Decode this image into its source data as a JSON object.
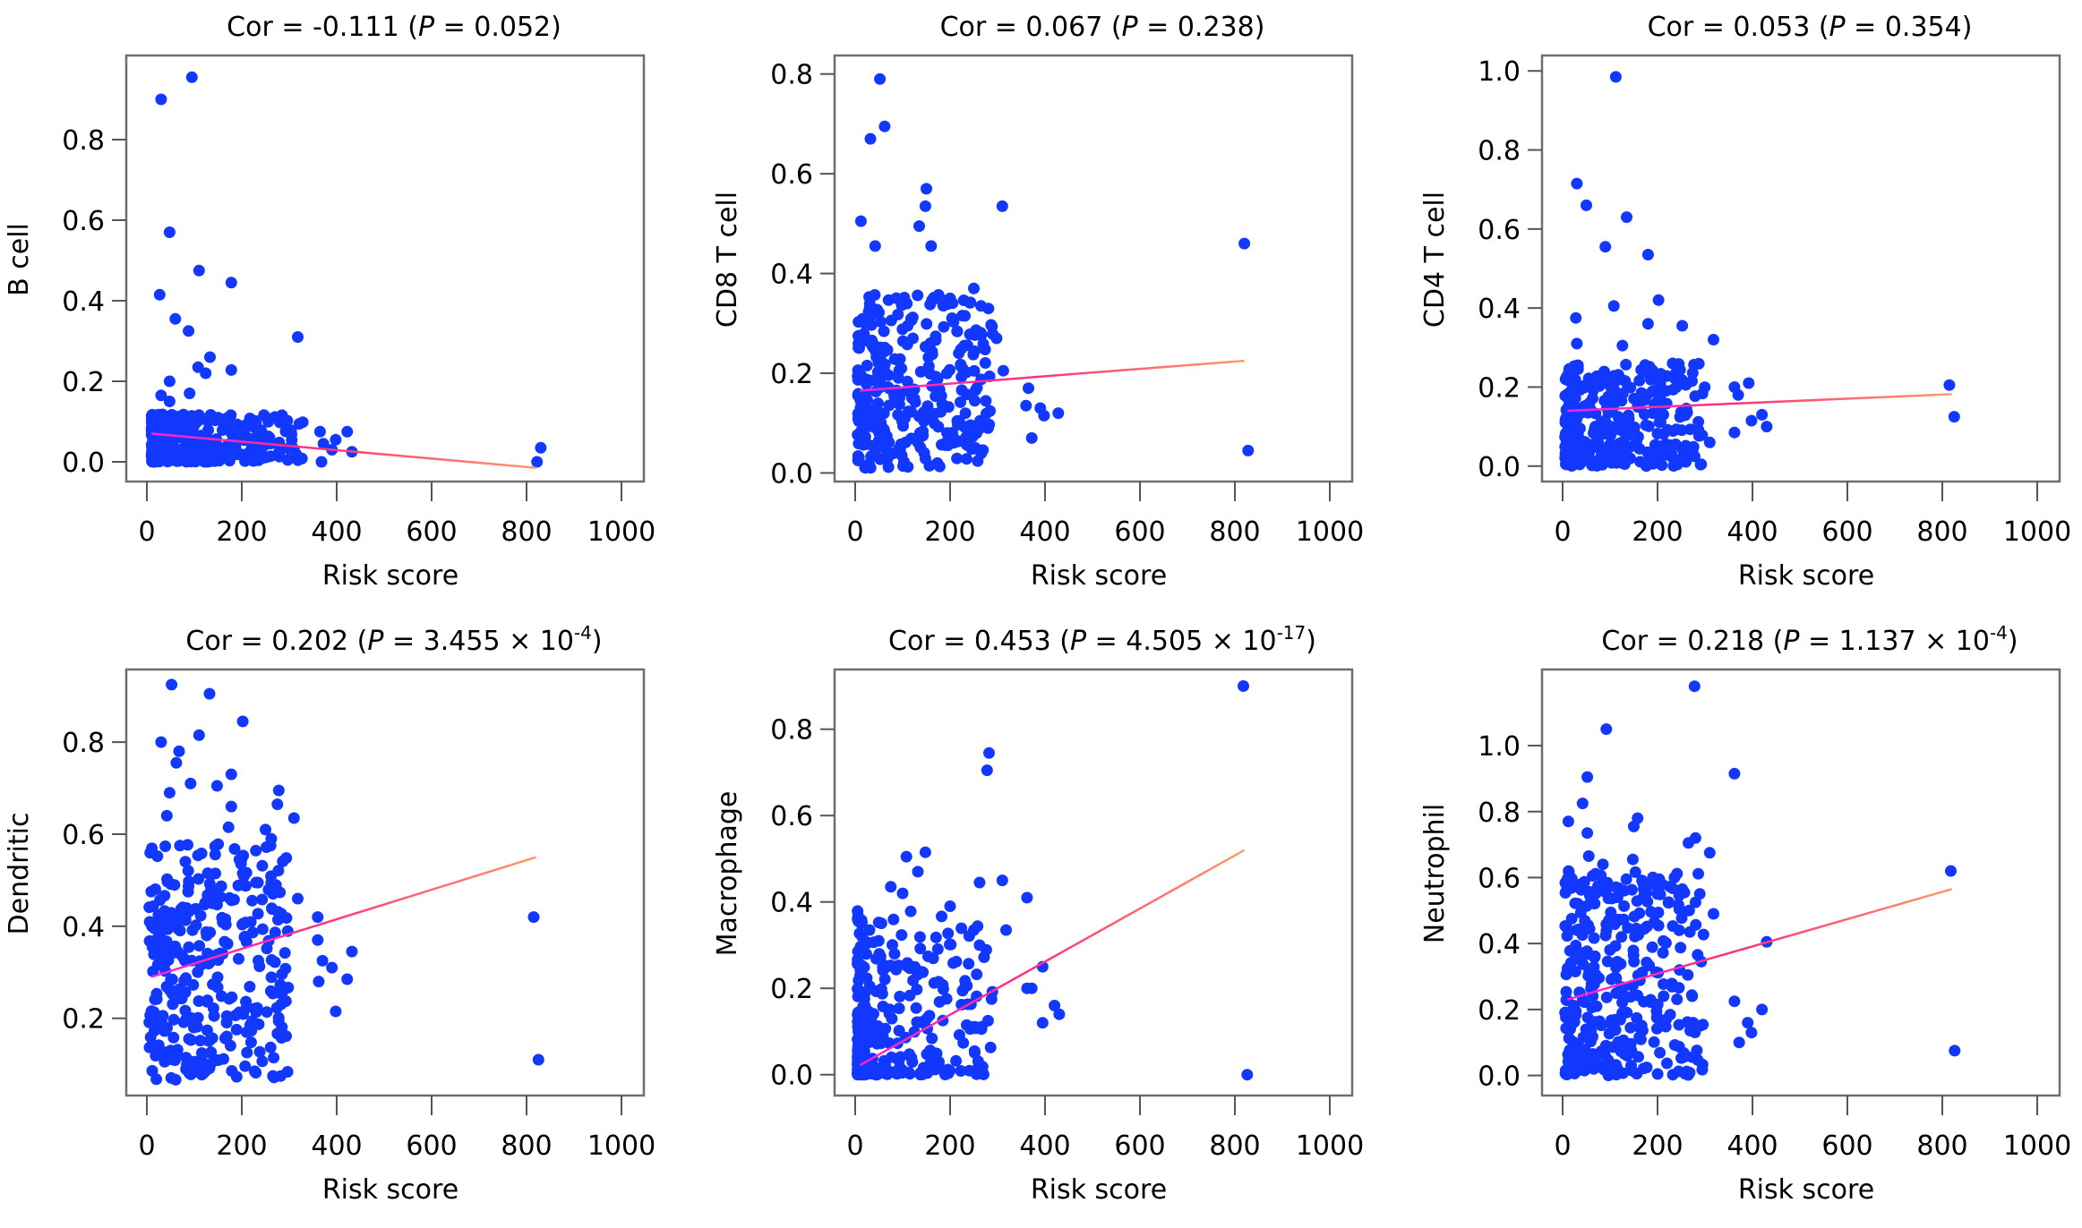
{
  "chart_data": [
    {
      "type": "scatter",
      "title": "Cor = -0.111 (P = 0.052)",
      "title_parts": {
        "cor": "-0.111",
        "p_mantissa": "0.052",
        "p_exponent": null
      },
      "xlabel": "Risk score",
      "ylabel": "B cell",
      "xlim": [
        -20,
        1050
      ],
      "ylim": [
        -0.04,
        1.0
      ],
      "xticks": [
        0,
        200,
        400,
        600,
        800,
        1000
      ],
      "yticks": [
        0.0,
        0.2,
        0.4,
        0.6,
        0.8
      ],
      "ytick_labels": [
        "0.0",
        "0.2",
        "0.4",
        "0.6",
        "0.8"
      ],
      "fit_line": {
        "x": [
          10,
          820
        ],
        "y": [
          0.07,
          -0.015
        ]
      },
      "outliers": [
        [
          30,
          0.9
        ],
        [
          95,
          0.955
        ],
        [
          48,
          0.57
        ],
        [
          27,
          0.415
        ],
        [
          110,
          0.475
        ],
        [
          178,
          0.445
        ],
        [
          60,
          0.355
        ],
        [
          88,
          0.325
        ],
        [
          318,
          0.31
        ],
        [
          133,
          0.26
        ],
        [
          108,
          0.235
        ],
        [
          124,
          0.22
        ],
        [
          178,
          0.228
        ],
        [
          48,
          0.2
        ],
        [
          30,
          0.165
        ],
        [
          90,
          0.17
        ],
        [
          48,
          0.15
        ],
        [
          215,
          0.095
        ],
        [
          365,
          0.075
        ],
        [
          422,
          0.075
        ],
        [
          398,
          0.055
        ],
        [
          372,
          0.045
        ],
        [
          390,
          0.03
        ],
        [
          432,
          0.025
        ],
        [
          368,
          0.0
        ],
        [
          822,
          0.0
        ],
        [
          830,
          0.035
        ]
      ],
      "cluster": {
        "x_range": [
          10,
          330
        ],
        "y_range": [
          0.0,
          0.12
        ],
        "n": 320,
        "skew": 2.0
      }
    },
    {
      "type": "scatter",
      "title": "Cor = 0.067 (P = 0.238)",
      "title_parts": {
        "cor": "0.067",
        "p_mantissa": "0.238",
        "p_exponent": null
      },
      "xlabel": "Risk score",
      "ylabel": "CD8 T cell",
      "xlim": [
        -20,
        1050
      ],
      "ylim": [
        -0.01,
        0.83
      ],
      "xticks": [
        0,
        200,
        400,
        600,
        800,
        1000
      ],
      "yticks": [
        0.0,
        0.2,
        0.4,
        0.6,
        0.8
      ],
      "ytick_labels": [
        "0.0",
        "0.2",
        "0.4",
        "0.6",
        "0.8"
      ],
      "fit_line": {
        "x": [
          10,
          820
        ],
        "y": [
          0.165,
          0.225
        ]
      },
      "outliers": [
        [
          52,
          0.79
        ],
        [
          62,
          0.695
        ],
        [
          32,
          0.67
        ],
        [
          150,
          0.57
        ],
        [
          148,
          0.535
        ],
        [
          310,
          0.535
        ],
        [
          12,
          0.505
        ],
        [
          135,
          0.495
        ],
        [
          160,
          0.455
        ],
        [
          42,
          0.455
        ],
        [
          820,
          0.46
        ],
        [
          828,
          0.045
        ],
        [
          250,
          0.37
        ],
        [
          265,
          0.335
        ],
        [
          200,
          0.35
        ],
        [
          298,
          0.27
        ],
        [
          312,
          0.205
        ],
        [
          365,
          0.17
        ],
        [
          360,
          0.135
        ],
        [
          390,
          0.13
        ],
        [
          398,
          0.115
        ],
        [
          428,
          0.12
        ],
        [
          372,
          0.07
        ],
        [
          280,
          0.09
        ]
      ],
      "cluster": {
        "x_range": [
          5,
          290
        ],
        "y_range": [
          0.01,
          0.36
        ],
        "n": 300,
        "skew": 1.4
      }
    },
    {
      "type": "scatter",
      "title": "Cor = 0.053 (P = 0.354)",
      "title_parts": {
        "cor": "0.053",
        "p_mantissa": "0.354",
        "p_exponent": null
      },
      "xlabel": "Risk score",
      "ylabel": "CD4 T cell",
      "xlim": [
        -20,
        1050
      ],
      "ylim": [
        -0.03,
        1.03
      ],
      "xticks": [
        0,
        200,
        400,
        600,
        800,
        1000
      ],
      "yticks": [
        0.0,
        0.2,
        0.4,
        0.6,
        0.8,
        1.0
      ],
      "ytick_labels": [
        "0.0",
        "0.2",
        "0.4",
        "0.6",
        "0.8",
        "1.0"
      ],
      "fit_line": {
        "x": [
          10,
          820
        ],
        "y": [
          0.14,
          0.182
        ]
      },
      "outliers": [
        [
          112,
          0.985
        ],
        [
          30,
          0.715
        ],
        [
          50,
          0.66
        ],
        [
          135,
          0.63
        ],
        [
          90,
          0.555
        ],
        [
          180,
          0.535
        ],
        [
          108,
          0.405
        ],
        [
          202,
          0.42
        ],
        [
          28,
          0.375
        ],
        [
          180,
          0.36
        ],
        [
          252,
          0.355
        ],
        [
          318,
          0.32
        ],
        [
          30,
          0.31
        ],
        [
          126,
          0.305
        ],
        [
          815,
          0.205
        ],
        [
          825,
          0.125
        ],
        [
          392,
          0.21
        ],
        [
          362,
          0.2
        ],
        [
          370,
          0.18
        ],
        [
          420,
          0.13
        ],
        [
          398,
          0.115
        ],
        [
          430,
          0.1
        ],
        [
          362,
          0.085
        ],
        [
          310,
          0.06
        ],
        [
          265,
          0.025
        ]
      ],
      "cluster": {
        "x_range": [
          5,
          300
        ],
        "y_range": [
          0.0,
          0.26
        ],
        "n": 320,
        "skew": 1.6
      }
    },
    {
      "type": "scatter",
      "title": "Cor = 0.202 (P = 3.455 × 10^-4)",
      "title_parts": {
        "cor": "0.202",
        "p_mantissa": "3.455 × 10",
        "p_exponent": "-4"
      },
      "xlabel": "Risk score",
      "ylabel": "Dendritic",
      "xlim": [
        -20,
        1050
      ],
      "ylim": [
        0.04,
        0.95
      ],
      "xticks": [
        0,
        200,
        400,
        600,
        800,
        1000
      ],
      "yticks": [
        0.2,
        0.4,
        0.6,
        0.8
      ],
      "ytick_labels": [
        "0.2",
        "0.4",
        "0.6",
        "0.8"
      ],
      "fit_line": {
        "x": [
          10,
          820
        ],
        "y": [
          0.29,
          0.55
        ]
      },
      "outliers": [
        [
          52,
          0.925
        ],
        [
          132,
          0.905
        ],
        [
          202,
          0.845
        ],
        [
          110,
          0.815
        ],
        [
          30,
          0.8
        ],
        [
          68,
          0.78
        ],
        [
          62,
          0.755
        ],
        [
          178,
          0.73
        ],
        [
          92,
          0.71
        ],
        [
          148,
          0.705
        ],
        [
          278,
          0.695
        ],
        [
          48,
          0.69
        ],
        [
          275,
          0.665
        ],
        [
          178,
          0.66
        ],
        [
          42,
          0.64
        ],
        [
          310,
          0.635
        ],
        [
          250,
          0.61
        ],
        [
          262,
          0.59
        ],
        [
          172,
          0.615
        ],
        [
          202,
          0.515
        ],
        [
          230,
          0.495
        ],
        [
          318,
          0.46
        ],
        [
          360,
          0.42
        ],
        [
          815,
          0.42
        ],
        [
          825,
          0.11
        ],
        [
          360,
          0.37
        ],
        [
          432,
          0.345
        ],
        [
          370,
          0.325
        ],
        [
          390,
          0.31
        ],
        [
          422,
          0.285
        ],
        [
          362,
          0.28
        ],
        [
          398,
          0.215
        ],
        [
          280,
          0.255
        ]
      ],
      "cluster": {
        "x_range": [
          5,
          300
        ],
        "y_range": [
          0.06,
          0.58
        ],
        "n": 320,
        "skew": 1.3
      }
    },
    {
      "type": "scatter",
      "title": "Cor = 0.453 (P = 4.505 × 10^-17)",
      "title_parts": {
        "cor": "0.453",
        "p_mantissa": "4.505 × 10",
        "p_exponent": "-17"
      },
      "xlabel": "Risk score",
      "ylabel": "Macrophage",
      "xlim": [
        -20,
        1050
      ],
      "ylim": [
        -0.04,
        0.93
      ],
      "xticks": [
        0,
        200,
        400,
        600,
        800,
        1000
      ],
      "yticks": [
        0.0,
        0.2,
        0.4,
        0.6,
        0.8
      ],
      "ytick_labels": [
        "0.0",
        "0.2",
        "0.4",
        "0.6",
        "0.8"
      ],
      "fit_line": {
        "x": [
          10,
          820
        ],
        "y": [
          0.022,
          0.52
        ]
      },
      "outliers": [
        [
          818,
          0.9
        ],
        [
          826,
          0.0
        ],
        [
          282,
          0.745
        ],
        [
          278,
          0.705
        ],
        [
          148,
          0.515
        ],
        [
          108,
          0.505
        ],
        [
          132,
          0.47
        ],
        [
          262,
          0.445
        ],
        [
          310,
          0.45
        ],
        [
          75,
          0.435
        ],
        [
          100,
          0.42
        ],
        [
          362,
          0.41
        ],
        [
          200,
          0.39
        ],
        [
          12,
          0.35
        ],
        [
          30,
          0.335
        ],
        [
          318,
          0.335
        ],
        [
          250,
          0.335
        ],
        [
          262,
          0.3
        ],
        [
          395,
          0.25
        ],
        [
          362,
          0.2
        ],
        [
          372,
          0.2
        ],
        [
          420,
          0.16
        ],
        [
          430,
          0.14
        ],
        [
          395,
          0.12
        ],
        [
          280,
          0.125
        ]
      ],
      "cluster": {
        "x_range": [
          5,
          290
        ],
        "y_range": [
          0.0,
          0.38
        ],
        "n": 300,
        "skew": 2.6
      }
    },
    {
      "type": "scatter",
      "title": "Cor = 0.218 (P = 1.137 × 10^-4)",
      "title_parts": {
        "cor": "0.218",
        "p_mantissa": "1.137 × 10",
        "p_exponent": "-4"
      },
      "xlabel": "Risk score",
      "ylabel": "Neutrophil",
      "xlim": [
        -20,
        1050
      ],
      "ylim": [
        -0.05,
        1.22
      ],
      "xticks": [
        0,
        200,
        400,
        600,
        800,
        1000
      ],
      "yticks": [
        0.0,
        0.2,
        0.4,
        0.6,
        0.8,
        1.0
      ],
      "ytick_labels": [
        "0.0",
        "0.2",
        "0.4",
        "0.6",
        "0.8",
        "1.0"
      ],
      "fit_line": {
        "x": [
          10,
          820
        ],
        "y": [
          0.23,
          0.565
        ]
      },
      "outliers": [
        [
          278,
          1.18
        ],
        [
          92,
          1.05
        ],
        [
          362,
          0.915
        ],
        [
          52,
          0.905
        ],
        [
          42,
          0.825
        ],
        [
          158,
          0.78
        ],
        [
          12,
          0.77
        ],
        [
          150,
          0.755
        ],
        [
          52,
          0.735
        ],
        [
          280,
          0.72
        ],
        [
          265,
          0.705
        ],
        [
          310,
          0.675
        ],
        [
          55,
          0.665
        ],
        [
          148,
          0.655
        ],
        [
          85,
          0.64
        ],
        [
          818,
          0.62
        ],
        [
          826,
          0.075
        ],
        [
          252,
          0.565
        ],
        [
          200,
          0.55
        ],
        [
          280,
          0.525
        ],
        [
          318,
          0.49
        ],
        [
          430,
          0.405
        ],
        [
          292,
          0.345
        ],
        [
          362,
          0.225
        ],
        [
          420,
          0.2
        ],
        [
          390,
          0.16
        ],
        [
          398,
          0.13
        ],
        [
          372,
          0.1
        ],
        [
          275,
          0.16
        ]
      ],
      "cluster": {
        "x_range": [
          5,
          300
        ],
        "y_range": [
          0.0,
          0.62
        ],
        "n": 340,
        "skew": 1.5
      }
    }
  ]
}
